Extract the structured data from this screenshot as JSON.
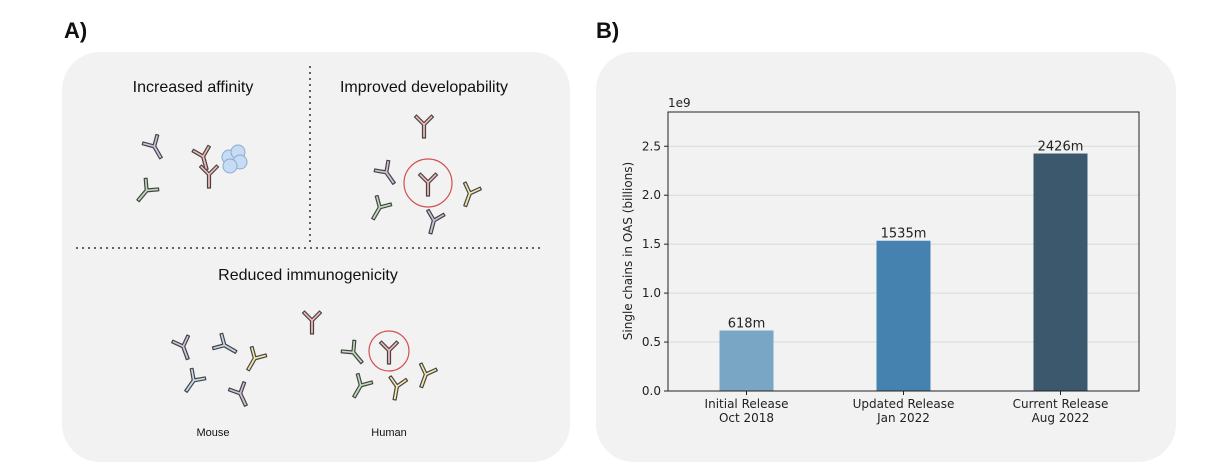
{
  "panel_a": {
    "label": "A)",
    "sections": {
      "affinity": "Increased affinity",
      "developability": "Improved developability",
      "immunogenicity": "Reduced immunogenicity"
    },
    "species": {
      "mouse": "Mouse",
      "human": "Human"
    },
    "colors": {
      "purple": "#cfc0dc",
      "pink": "#f1b5b5",
      "green": "#bfdcbb",
      "yellow": "#f6e8a8",
      "blue": "#c9daf0",
      "antigen": "#c6dcf5",
      "ring": "#d25050"
    }
  },
  "panel_b": {
    "label": "B)"
  },
  "chart_data": {
    "type": "bar",
    "categories": [
      [
        "Initial Release",
        "Oct 2018"
      ],
      [
        "Updated Release",
        "Jan 2022"
      ],
      [
        "Current Release",
        "Aug 2022"
      ]
    ],
    "values": [
      618000000,
      1535000000,
      2426000000
    ],
    "data_labels": [
      "618m",
      "1535m",
      "2426m"
    ],
    "colors": [
      "#7aa6c6",
      "#4682b0",
      "#3c586d"
    ],
    "ylabel": "Single chains in OAS (billions)",
    "y_exponent_label": "1e9",
    "ylim": [
      0,
      2.85
    ],
    "yticks": [
      "0.0",
      "0.5",
      "1.0",
      "1.5",
      "2.0",
      "2.5"
    ],
    "grid": "horizontal"
  }
}
